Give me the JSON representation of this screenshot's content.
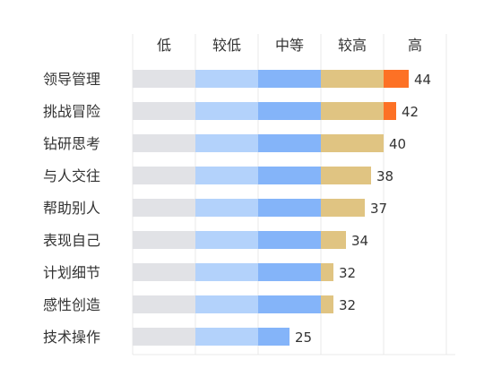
{
  "chart_data": {
    "type": "bar",
    "orientation": "horizontal",
    "title": "",
    "xlabel": "",
    "ylabel": "",
    "bands": [
      {
        "label": "低",
        "from": 0,
        "to": 10,
        "color": "#e1e2e6"
      },
      {
        "label": "较低",
        "from": 10,
        "to": 20,
        "color": "#b3d2fb"
      },
      {
        "label": "中等",
        "from": 20,
        "to": 30,
        "color": "#84b4f9"
      },
      {
        "label": "较高",
        "from": 30,
        "to": 40,
        "color": "#e0c482"
      },
      {
        "label": "高",
        "from": 40,
        "to": 50,
        "color": "#fd7125"
      }
    ],
    "categories": [
      "领导管理",
      "挑战冒险",
      "钻研思考",
      "与人交往",
      "帮助别人",
      "表现自己",
      "计划细节",
      "感性创造",
      "技术操作"
    ],
    "values": [
      44,
      42,
      40,
      38,
      37,
      34,
      32,
      32,
      25
    ],
    "xlim": [
      0,
      50
    ],
    "grid": true,
    "legend": "none"
  },
  "colors": {
    "text": "#333333",
    "grid": "#e8e8e8"
  }
}
